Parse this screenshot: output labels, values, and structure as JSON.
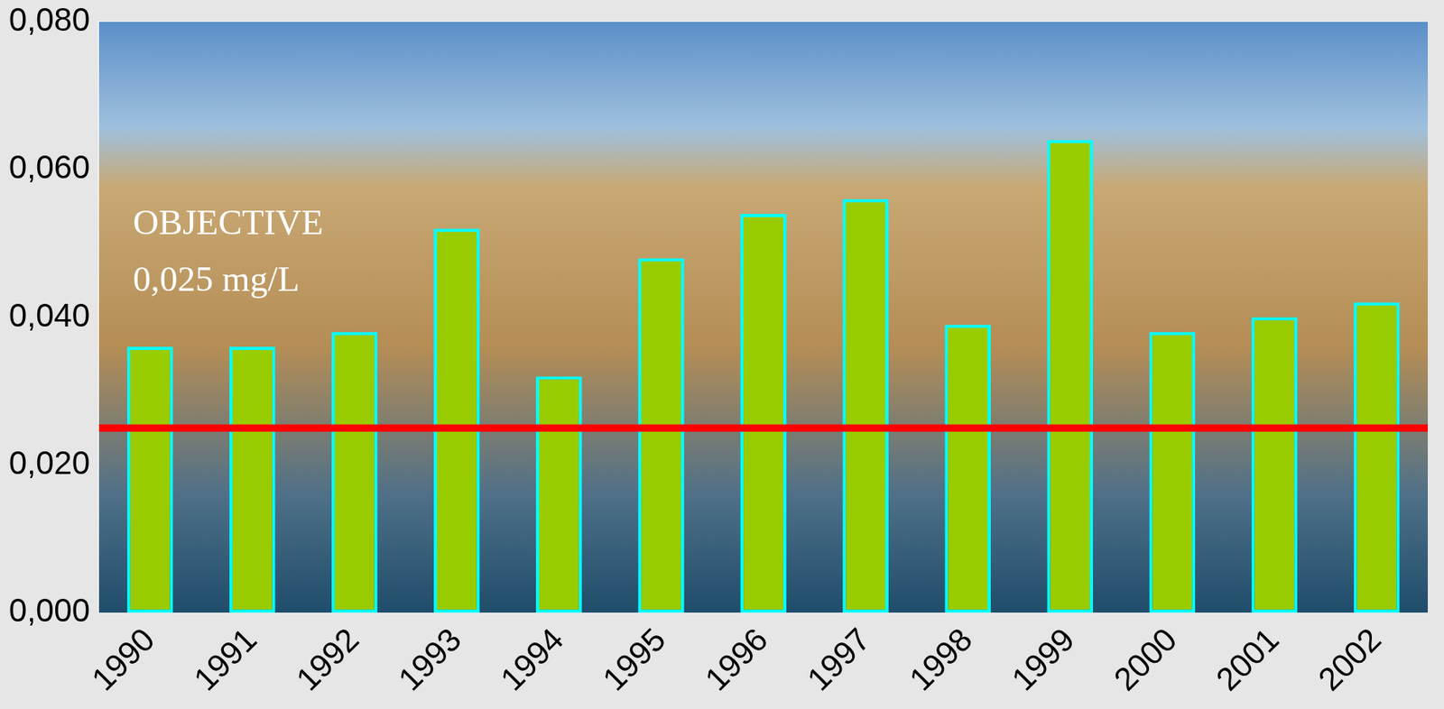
{
  "chart_data": {
    "type": "bar",
    "categories": [
      "1990",
      "1991",
      "1992",
      "1993",
      "1994",
      "1995",
      "1996",
      "1997",
      "1998",
      "1999",
      "2000",
      "2001",
      "2002"
    ],
    "values": [
      0.036,
      0.036,
      0.038,
      0.052,
      0.032,
      0.048,
      0.054,
      0.056,
      0.039,
      0.064,
      0.038,
      0.04,
      0.042
    ],
    "color": "#99cc00",
    "ylim": [
      0,
      0.08
    ],
    "yticks": [
      {
        "value": 0,
        "label": "0,000"
      },
      {
        "value": 0.02,
        "label": "0,020"
      },
      {
        "value": 0.04,
        "label": "0,040"
      },
      {
        "value": 0.06,
        "label": "0,060"
      },
      {
        "value": 0.08,
        "label": "0,080"
      }
    ],
    "grid": false,
    "reference_line": {
      "value": 0.025,
      "color": "#ff0000"
    },
    "annotations": [
      "OBJECTIVE",
      "0,025 mg/L"
    ]
  }
}
